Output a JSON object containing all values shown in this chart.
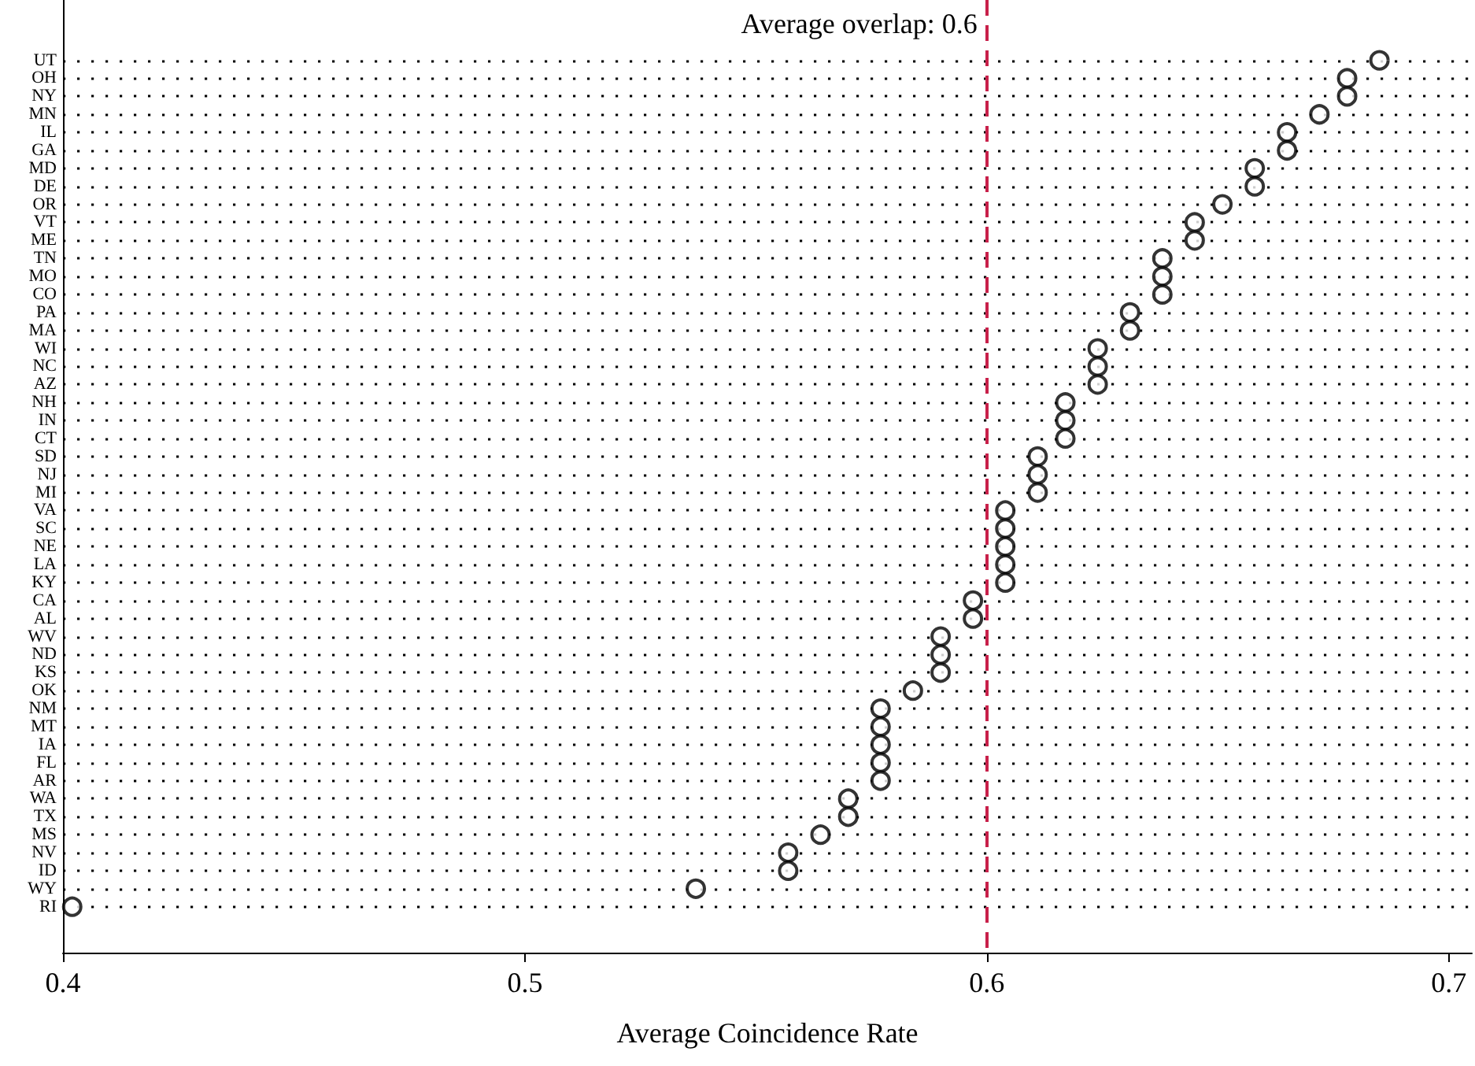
{
  "chart_data": {
    "type": "scatter",
    "orientation": "horizontal",
    "xlabel": "Average Coincidence Rate",
    "categories": [
      "UT",
      "OH",
      "NY",
      "MN",
      "IL",
      "GA",
      "MD",
      "DE",
      "OR",
      "VT",
      "ME",
      "TN",
      "MO",
      "CO",
      "PA",
      "MA",
      "WI",
      "NC",
      "AZ",
      "NH",
      "IN",
      "CT",
      "SD",
      "NJ",
      "MI",
      "VA",
      "SC",
      "NE",
      "LA",
      "KY",
      "CA",
      "AL",
      "WV",
      "ND",
      "KS",
      "OK",
      "NM",
      "MT",
      "IA",
      "FL",
      "AR",
      "WA",
      "TX",
      "MS",
      "NV",
      "ID",
      "WY",
      "RI"
    ],
    "values": [
      0.685,
      0.678,
      0.678,
      0.672,
      0.665,
      0.665,
      0.658,
      0.658,
      0.651,
      0.645,
      0.645,
      0.638,
      0.638,
      0.638,
      0.631,
      0.631,
      0.624,
      0.624,
      0.624,
      0.617,
      0.617,
      0.617,
      0.611,
      0.611,
      0.611,
      0.604,
      0.604,
      0.604,
      0.604,
      0.604,
      0.597,
      0.597,
      0.59,
      0.59,
      0.59,
      0.584,
      0.577,
      0.577,
      0.577,
      0.577,
      0.577,
      0.57,
      0.57,
      0.564,
      0.557,
      0.557,
      0.537,
      0.402
    ],
    "color": "#000000",
    "marker": "circle",
    "grid": "y",
    "xlim": [
      0.4,
      0.705
    ],
    "xticks": [
      0.4,
      0.5,
      0.6,
      0.7
    ],
    "ref_lines": [
      {
        "axis": "x",
        "value": 0.6,
        "label": "Average overlap: 0.6",
        "color": "#c8204a",
        "line_style": "dashed"
      }
    ]
  }
}
